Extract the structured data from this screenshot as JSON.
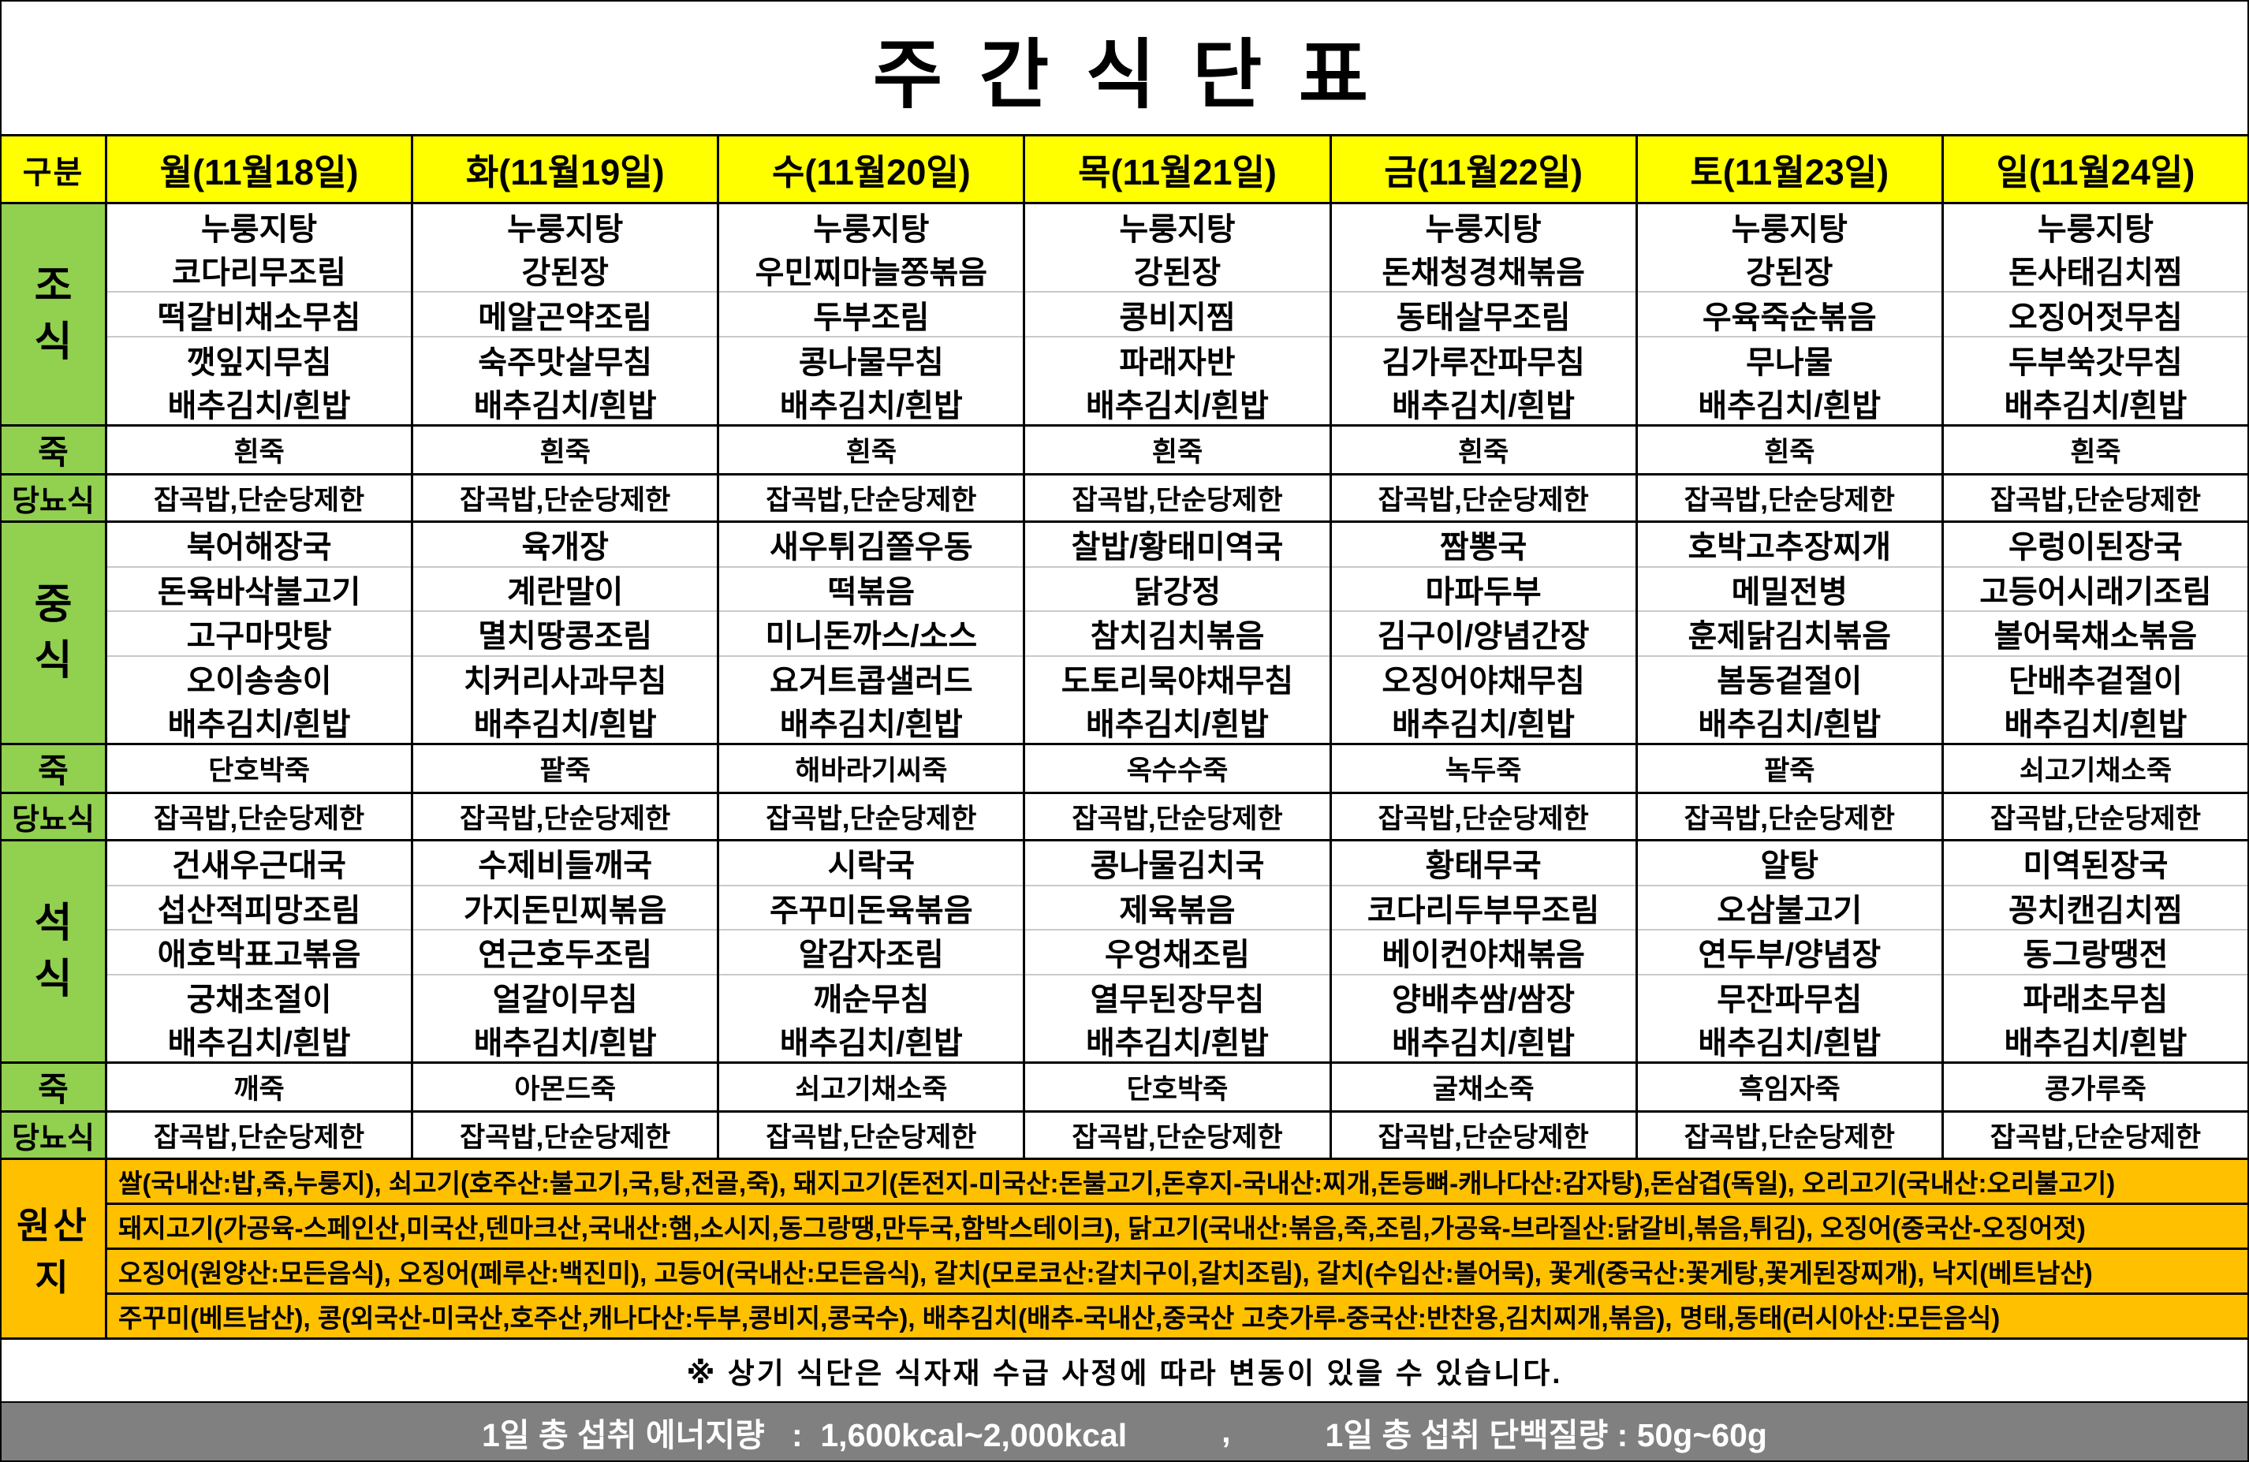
{
  "title": "주 간 식 단 표",
  "header": {
    "corner": "구분",
    "days": [
      "월(11월18일)",
      "화(11월19일)",
      "수(11월20일)",
      "목(11월21일)",
      "금(11월22일)",
      "토(11월23일)",
      "일(11월24일)"
    ]
  },
  "sections": [
    {
      "id": "breakfast",
      "label": "조\n식",
      "kind": "meal",
      "separators": [
        1,
        2
      ],
      "columns": [
        [
          "누룽지탕",
          "코다리무조림",
          "떡갈비채소무침",
          "깻잎지무침",
          "배추김치/흰밥"
        ],
        [
          "누룽지탕",
          "강된장",
          "메알곤약조림",
          "숙주맛살무침",
          "배추김치/흰밥"
        ],
        [
          "누룽지탕",
          "우민찌마늘쫑볶음",
          "두부조림",
          "콩나물무침",
          "배추김치/흰밥"
        ],
        [
          "누룽지탕",
          "강된장",
          "콩비지찜",
          "파래자반",
          "배추김치/흰밥"
        ],
        [
          "누룽지탕",
          "돈채청경채볶음",
          "동태살무조림",
          "김가루잔파무침",
          "배추김치/흰밥"
        ],
        [
          "누룽지탕",
          "강된장",
          "우육죽순볶음",
          "무나물",
          "배추김치/흰밥"
        ],
        [
          "누룽지탕",
          "돈사태김치찜",
          "오징어젓무침",
          "두부쑥갓무침",
          "배추김치/흰밥"
        ]
      ]
    },
    {
      "id": "porridge-1",
      "label": "죽",
      "kind": "porridge",
      "values": [
        "흰죽",
        "흰죽",
        "흰죽",
        "흰죽",
        "흰죽",
        "흰죽",
        "흰죽"
      ]
    },
    {
      "id": "diabetic-1",
      "label": "당뇨식",
      "kind": "diabetic",
      "values": [
        "잡곡밥,단순당제한",
        "잡곡밥,단순당제한",
        "잡곡밥,단순당제한",
        "잡곡밥,단순당제한",
        "잡곡밥,단순당제한",
        "잡곡밥,단순당제한",
        "잡곡밥,단순당제한"
      ]
    },
    {
      "id": "lunch",
      "label": "중\n식",
      "kind": "meal",
      "separators": [
        0,
        1,
        2
      ],
      "columns": [
        [
          "북어해장국",
          "돈육바삭불고기",
          "고구마맛탕",
          "오이송송이",
          "배추김치/흰밥"
        ],
        [
          "육개장",
          "계란말이",
          "멸치땅콩조림",
          "치커리사과무침",
          "배추김치/흰밥"
        ],
        [
          "새우튀김쫄우동",
          "떡볶음",
          "미니돈까스/소스",
          "요거트콥샐러드",
          "배추김치/흰밥"
        ],
        [
          "찰밥/황태미역국",
          "닭강정",
          "참치김치볶음",
          "도토리묵야채무침",
          "배추김치/흰밥"
        ],
        [
          "짬뽕국",
          "마파두부",
          "김구이/양념간장",
          "오징어야채무침",
          "배추김치/흰밥"
        ],
        [
          "호박고추장찌개",
          "메밀전병",
          "훈제닭김치볶음",
          "봄동겉절이",
          "배추김치/흰밥"
        ],
        [
          "우렁이된장국",
          "고등어시래기조림",
          "볼어묵채소볶음",
          "단배추겉절이",
          "배추김치/흰밥"
        ]
      ]
    },
    {
      "id": "porridge-2",
      "label": "죽",
      "kind": "porridge",
      "values": [
        "단호박죽",
        "팥죽",
        "해바라기씨죽",
        "옥수수죽",
        "녹두죽",
        "팥죽",
        "쇠고기채소죽"
      ]
    },
    {
      "id": "diabetic-2",
      "label": "당뇨식",
      "kind": "diabetic",
      "values": [
        "잡곡밥,단순당제한",
        "잡곡밥,단순당제한",
        "잡곡밥,단순당제한",
        "잡곡밥,단순당제한",
        "잡곡밥,단순당제한",
        "잡곡밥,단순당제한",
        "잡곡밥,단순당제한"
      ]
    },
    {
      "id": "dinner",
      "label": "석\n식",
      "kind": "meal",
      "separators": [
        0,
        1,
        2
      ],
      "columns": [
        [
          "건새우근대국",
          "섭산적피망조림",
          "애호박표고볶음",
          "궁채초절이",
          "배추김치/흰밥"
        ],
        [
          "수제비들깨국",
          "가지돈민찌볶음",
          "연근호두조림",
          "얼갈이무침",
          "배추김치/흰밥"
        ],
        [
          "시락국",
          "주꾸미돈육볶음",
          "알감자조림",
          "깨순무침",
          "배추김치/흰밥"
        ],
        [
          "콩나물김치국",
          "제육볶음",
          "우엉채조림",
          "열무된장무침",
          "배추김치/흰밥"
        ],
        [
          "황태무국",
          "코다리두부무조림",
          "베이컨야채볶음",
          "양배추쌈/쌈장",
          "배추김치/흰밥"
        ],
        [
          "알탕",
          "오삼불고기",
          "연두부/양념장",
          "무잔파무침",
          "배추김치/흰밥"
        ],
        [
          "미역된장국",
          "꽁치캔김치찜",
          "동그랑땡전",
          "파래초무침",
          "배추김치/흰밥"
        ]
      ]
    },
    {
      "id": "porridge-3",
      "label": "죽",
      "kind": "porridge",
      "values": [
        "깨죽",
        "아몬드죽",
        "쇠고기채소죽",
        "단호박죽",
        "굴채소죽",
        "흑임자죽",
        "콩가루죽"
      ]
    },
    {
      "id": "diabetic-3",
      "label": "당뇨식",
      "kind": "diabetic",
      "values": [
        "잡곡밥,단순당제한",
        "잡곡밥,단순당제한",
        "잡곡밥,단순당제한",
        "잡곡밥,단순당제한",
        "잡곡밥,단순당제한",
        "잡곡밥,단순당제한",
        "잡곡밥,단순당제한"
      ]
    }
  ],
  "origin": {
    "label": "원산지",
    "lines": [
      "쌀(국내산:밥,죽,누룽지), 쇠고기(호주산:불고기,국,탕,전골,죽), 돼지고기(돈전지-미국산:돈불고기,돈후지-국내산:찌개,돈등뼈-캐나다산:감자탕),돈삼겹(독일), 오리고기(국내산:오리불고기)",
      "돼지고기(가공육-스페인산,미국산,덴마크산,국내산:햄,소시지,동그랑땡,만두국,함박스테이크), 닭고기(국내산:볶음,죽,조림,가공육-브라질산:닭갈비,볶음,튀김), 오징어(중국산-오징어젓)",
      "오징어(원양산:모든음식), 오징어(페루산:백진미), 고등어(국내산:모든음식), 갈치(모로코산:갈치구이,갈치조림), 갈치(수입산:볼어묵), 꽃게(중국산:꽃게탕,꽃게된장찌개), 낙지(베트남산)",
      "주꾸미(베트남산), 콩(외국산-미국산,호주산,캐나다산:두부,콩비지,콩국수), 배추김치(배추-국내산,중국산 고춧가루-중국산:반찬용,김치찌개,볶음), 명태,동태(러시아산:모든음식)"
    ]
  },
  "notice": "※ 상기 식단은 식자재 수급 사정에 따라 변동이 있을 수 있습니다.",
  "footer": {
    "energy": "1일 총 섭취 에너지량   :  1,600kcal~2,000kcal",
    "separator": ",",
    "protein": "1일 총 섭취 단백질량 : 50g~60g"
  },
  "colors": {
    "header_yellow": "#FFFF00",
    "label_green": "#92D050",
    "origin_orange": "#FFC000",
    "footer_gray": "#808080",
    "grid_black": "#000000",
    "inner_separator_gray": "#C9C9C9"
  }
}
